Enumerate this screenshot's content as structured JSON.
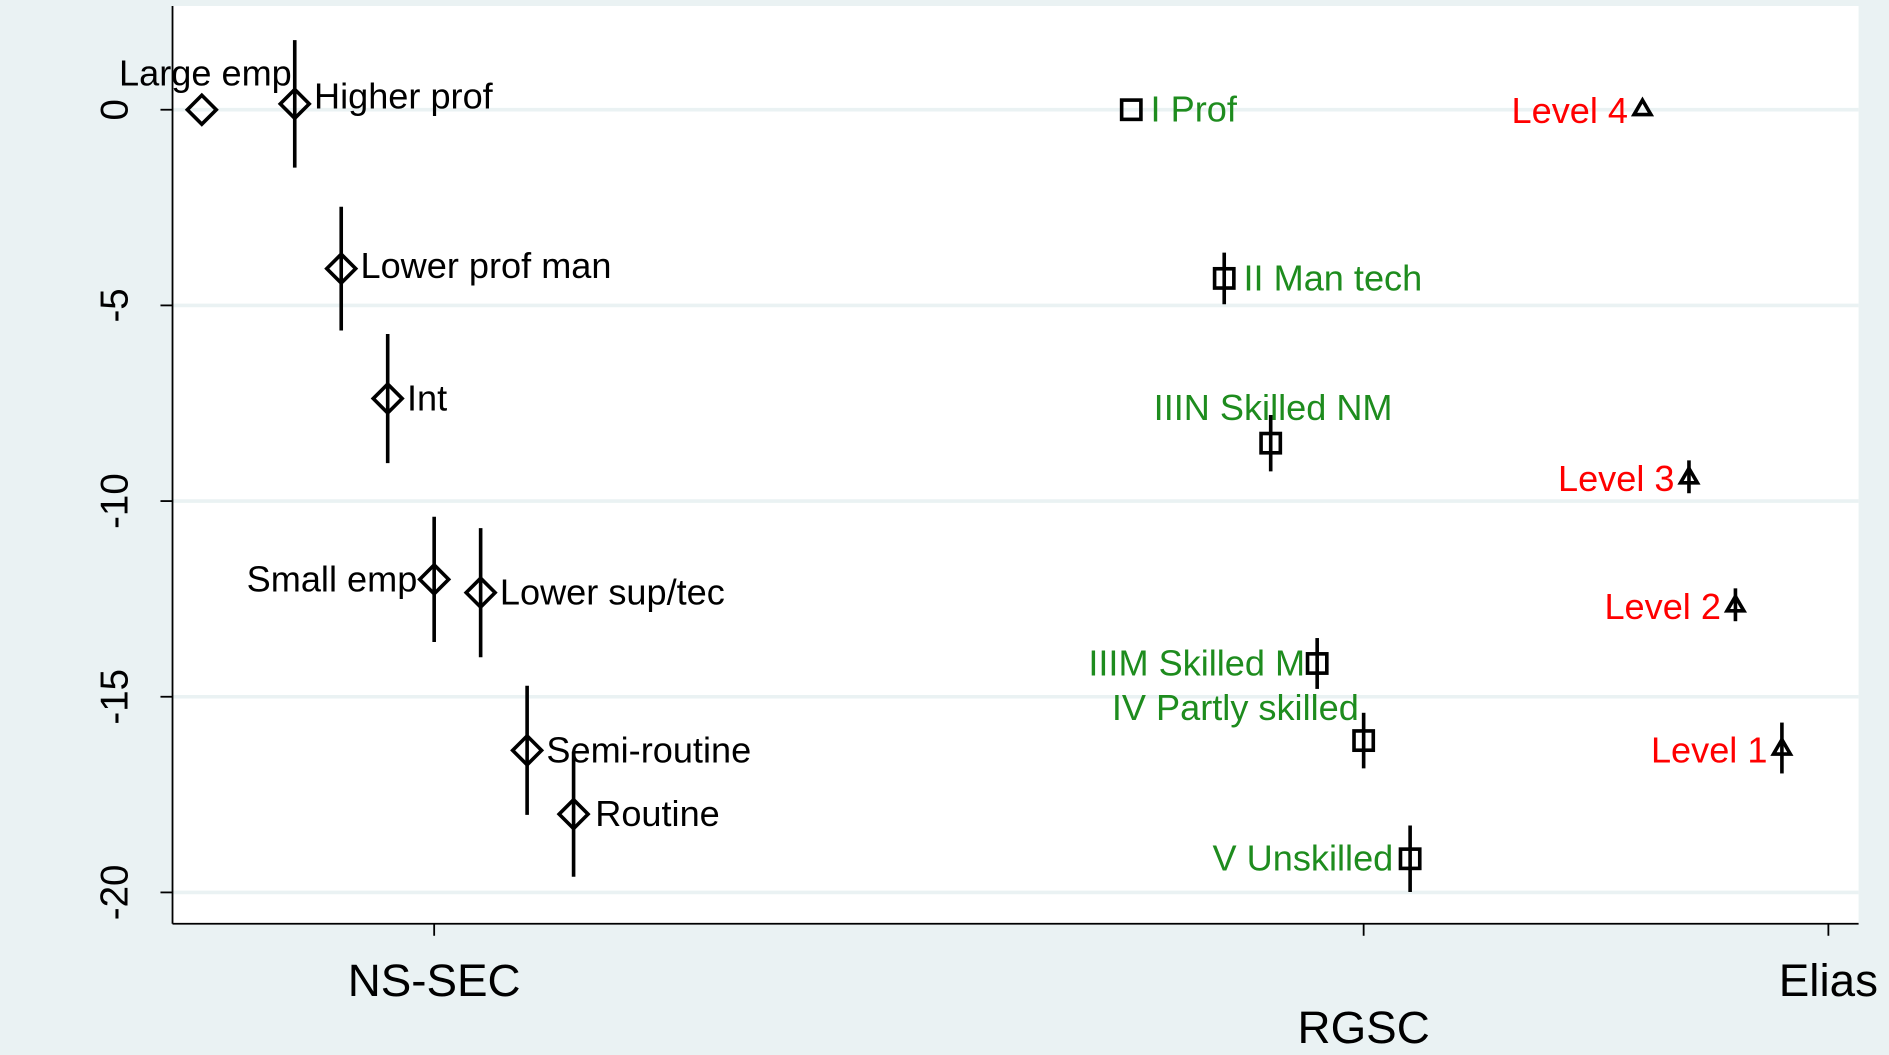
{
  "chart_data": {
    "type": "scatter",
    "ylim": [
      -20.8,
      2.65
    ],
    "yticks": [
      0,
      -5,
      -10,
      -15,
      -20
    ],
    "xlim": [
      0.437,
      4.065
    ],
    "xticks": [
      {
        "value": 1,
        "label": "NS-SEC"
      },
      {
        "value": 3,
        "label": "RGSC"
      },
      {
        "value": 4,
        "label": "Elias"
      }
    ],
    "grid": true,
    "series": [
      {
        "marker": "diamond",
        "color": "#000000",
        "label_color": "#000000",
        "labels": [
          "Large emp",
          "Higher prof",
          "Lower prof man",
          "Int",
          "Small emp",
          "Lower sup/tec",
          "Semi-routine",
          "Routine"
        ],
        "x": [
          0.5,
          0.7,
          0.8,
          0.9,
          1.0,
          1.1,
          1.2,
          1.3
        ],
        "values": [
          0,
          0.15,
          -4.06,
          -7.38,
          -12.0,
          -12.34,
          -16.37,
          -18.0
        ],
        "errors": [
          null,
          1.63,
          1.58,
          1.65,
          1.6,
          1.65,
          1.65,
          1.6
        ]
      },
      {
        "marker": "square",
        "color": "#000000",
        "label_color": "#1e8c1e",
        "labels": [
          "I Prof",
          "II Man tech",
          "IIIN Skilled NM",
          "IIIM Skilled M",
          "IV Partly skilled",
          "V Unskilled"
        ],
        "x": [
          2.5,
          2.7,
          2.8,
          2.9,
          3.0,
          3.1
        ],
        "values": [
          0,
          -4.31,
          -8.52,
          -14.15,
          -16.12,
          -19.14
        ],
        "errors": [
          null,
          0.66,
          0.72,
          0.65,
          0.71,
          0.85
        ]
      },
      {
        "marker": "triangle",
        "color": "#000000",
        "label_color": "#ff0000",
        "labels": [
          "Level 4",
          "Level 3",
          "Level 2",
          "Level 1"
        ],
        "x": [
          3.6,
          3.7,
          3.8,
          3.9
        ],
        "values": [
          0.03,
          -9.38,
          -12.65,
          -16.31
        ],
        "errors": [
          null,
          0.42,
          0.42,
          0.65
        ]
      }
    ]
  }
}
